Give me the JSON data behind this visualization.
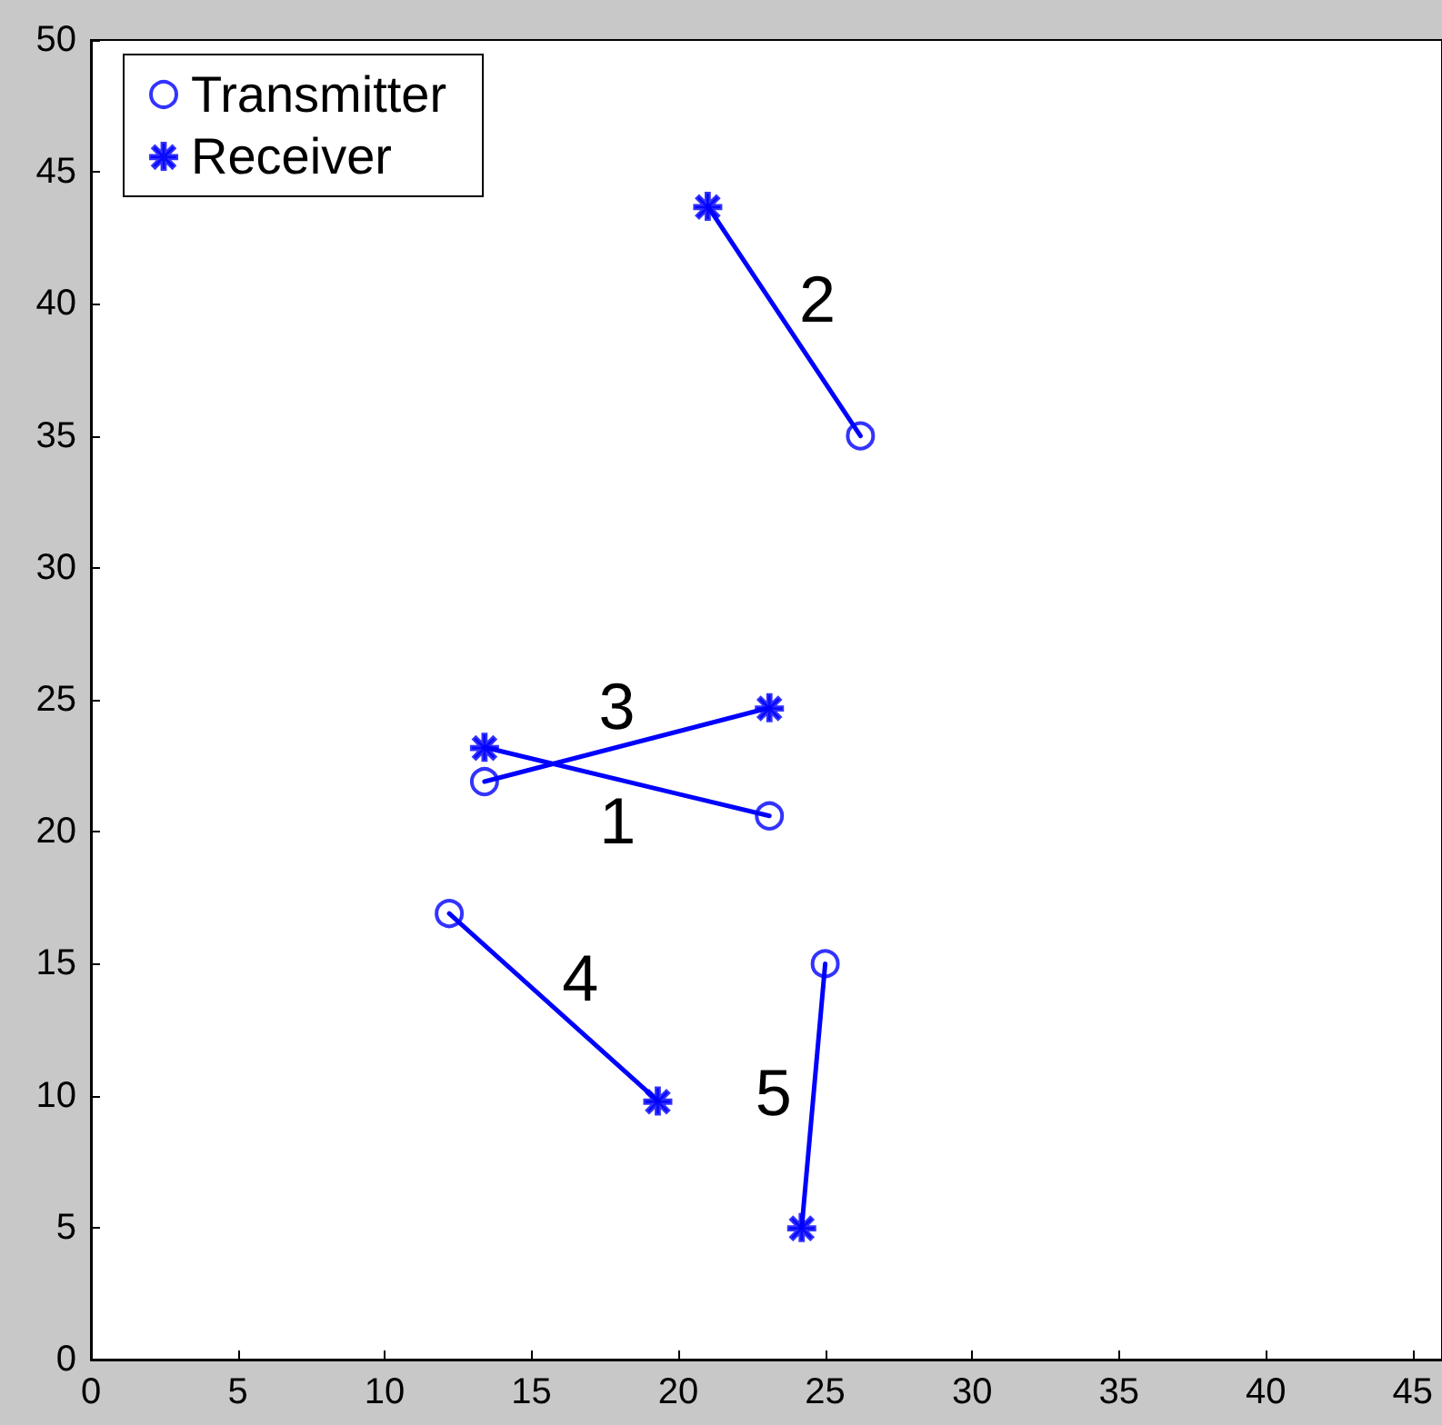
{
  "chart_data": {
    "type": "line",
    "xlim": [
      0,
      46
    ],
    "xticks": [
      0,
      5,
      10,
      15,
      20,
      25,
      30,
      35,
      40,
      45
    ],
    "ylim": [
      0,
      50
    ],
    "yticks": [
      0,
      5,
      10,
      15,
      20,
      25,
      30,
      35,
      40,
      45,
      50
    ],
    "grid": false,
    "legend": "top left",
    "series": [
      {
        "type": "line",
        "name": "1",
        "color": "#0000ff",
        "x": [
          13.4,
          23.1
        ],
        "values": [
          23.2,
          20.6
        ],
        "marker": "none",
        "line_style": "solid"
      },
      {
        "type": "line",
        "name": "2",
        "color": "#0000ff",
        "x": [
          26.2,
          21.0
        ],
        "values": [
          35.0,
          43.7
        ],
        "marker": "none",
        "line_style": "solid"
      },
      {
        "type": "line",
        "name": "3",
        "color": "#0000ff",
        "x": [
          23.1,
          13.4
        ],
        "values": [
          24.7,
          21.9
        ],
        "marker": "none",
        "line_style": "solid"
      },
      {
        "type": "line",
        "name": "4",
        "color": "#0000ff",
        "x": [
          19.3,
          12.2
        ],
        "values": [
          9.8,
          16.9
        ],
        "marker": "none",
        "line_style": "solid"
      },
      {
        "type": "line",
        "name": "5",
        "color": "#0000ff",
        "x": [
          25.0,
          24.2
        ],
        "values": [
          15.0,
          5.0
        ],
        "marker": "none",
        "line_style": "solid"
      },
      {
        "type": "scatter",
        "name": "Transmitter",
        "color": "#0000ff",
        "x": [
          23.1,
          26.2,
          13.4,
          12.2,
          25.0
        ],
        "values": [
          20.6,
          35.0,
          21.9,
          16.9,
          15.0
        ],
        "marker": "circle"
      },
      {
        "type": "scatter",
        "name": "Receiver",
        "color": "#0000ff",
        "x": [
          13.4,
          21.0,
          23.1,
          19.3,
          24.2
        ],
        "values": [
          23.2,
          43.7,
          24.7,
          9.8,
          5.0
        ],
        "marker": "star"
      }
    ]
  }
}
